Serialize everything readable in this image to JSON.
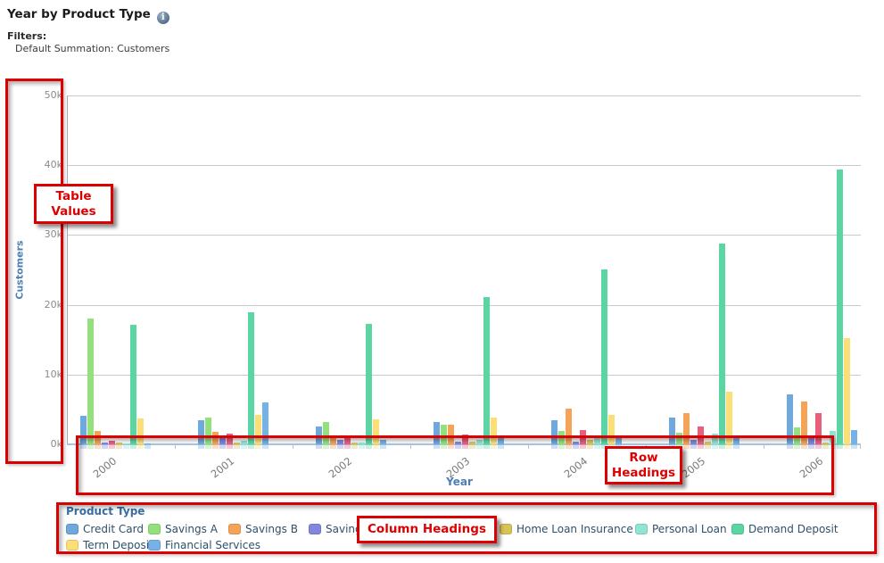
{
  "header": {
    "title": "Year by Product Type",
    "info_icon": "i",
    "filters_label": "Filters:",
    "filter_value": "Default Summation: Customers"
  },
  "annotations": {
    "table_values": "Table Values",
    "row_headings": "Row Headings",
    "column_headings": "Column Headings"
  },
  "chart_data": {
    "type": "bar",
    "title": "Year by Product Type",
    "xlabel": "Year",
    "ylabel": "Customers",
    "ylim": [
      0,
      50000
    ],
    "ytick_labels": [
      "0k",
      "10k",
      "20k",
      "30k",
      "40k",
      "50k"
    ],
    "grid": true,
    "legend_title": "Product Type",
    "legend_position": "bottom",
    "categories": [
      "2000",
      "2001",
      "2002",
      "2003",
      "2004",
      "2005",
      "2006"
    ],
    "series": [
      {
        "name": "Credit Card",
        "color": "#6FA8DC",
        "values": [
          4100,
          3400,
          2600,
          3200,
          3500,
          3900,
          7100
        ]
      },
      {
        "name": "Savings A",
        "color": "#94E07C",
        "values": [
          18000,
          3900,
          3200,
          2800,
          1900,
          1700,
          2400
        ]
      },
      {
        "name": "Savings B",
        "color": "#F5A356",
        "values": [
          1900,
          1800,
          1200,
          2800,
          5100,
          4500,
          6100
        ]
      },
      {
        "name": "Savings C",
        "color": "#8186DE",
        "values": [
          200,
          1000,
          700,
          400,
          400,
          600,
          1100
        ]
      },
      {
        "name": "Home Loan",
        "color": "#E85F7E",
        "values": [
          500,
          1500,
          1000,
          1400,
          2100,
          2600,
          4500
        ]
      },
      {
        "name": "Home Loan Insurance",
        "color": "#D9C355",
        "values": [
          300,
          300,
          200,
          400,
          600,
          400,
          300
        ]
      },
      {
        "name": "Personal Loan",
        "color": "#8FE5D2",
        "values": [
          100,
          500,
          300,
          700,
          900,
          1500,
          1900
        ]
      },
      {
        "name": "Demand Deposit",
        "color": "#5BD6A2",
        "values": [
          17100,
          18900,
          17300,
          21100,
          25000,
          28800,
          39400
        ]
      },
      {
        "name": "Term Deposit",
        "color": "#FBDF76",
        "values": [
          3700,
          4200,
          3600,
          3800,
          4200,
          7500,
          15200
        ]
      },
      {
        "name": "Financial Services",
        "color": "#74B2E8",
        "values": [
          100,
          6000,
          700,
          900,
          1000,
          1200,
          2100
        ]
      }
    ],
    "legend_note": "4th and 5th legend entries partially hidden behind the Column Headings annotation box"
  }
}
